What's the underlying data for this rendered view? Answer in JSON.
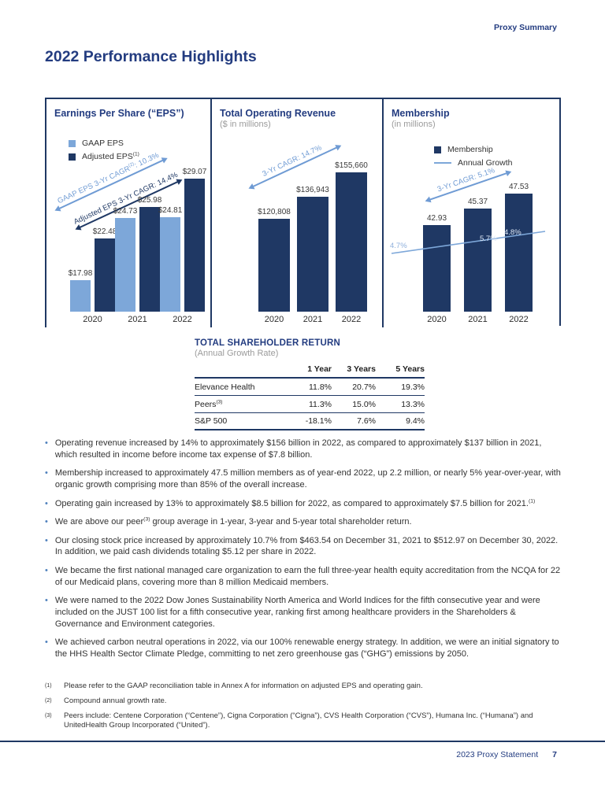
{
  "page": {
    "eyebrow": "Proxy Summary",
    "title": "2022 Performance Highlights",
    "footer": {
      "label": "2023 Proxy Statement",
      "page_number": "7"
    }
  },
  "colors": {
    "navy_text": "#233C80",
    "bar_navy": "#1F3864",
    "bar_light_blue": "#7DA7D9",
    "arrow_light_blue": "#6F9BD4",
    "subtitle_gray": "#9B9B9B",
    "bullet_blue": "#4F81BD"
  },
  "chart_data": [
    {
      "type": "bar",
      "title": "Earnings Per Share (“EPS”)",
      "subtitle": "",
      "categories": [
        "2020",
        "2021",
        "2022"
      ],
      "series": [
        {
          "name": "GAAP EPS",
          "name_sup": "",
          "values": [
            17.98,
            24.73,
            24.81
          ],
          "labels": [
            "$17.98",
            "$24.73",
            "$24.81"
          ],
          "color": "#7DA7D9"
        },
        {
          "name": "Adjusted EPS",
          "name_sup": "(1)",
          "values": [
            22.48,
            25.98,
            29.07
          ],
          "labels": [
            "$22.48",
            "$25.98",
            "$29.07"
          ],
          "color": "#1F3864"
        }
      ],
      "annotations": [
        {
          "pre": "GAAP EPS 3-Yr CAGR",
          "sup": "(2)",
          "post": ": 10.3%"
        },
        {
          "pre": "Adjusted EPS 3-Yr CAGR: 14.4%",
          "sup": "",
          "post": ""
        }
      ],
      "legend_position": "top-left",
      "grid": false
    },
    {
      "type": "bar",
      "title": "Total Operating Revenue",
      "subtitle": "($ in millions)",
      "categories": [
        "2020",
        "2021",
        "2022"
      ],
      "values": [
        120808,
        136943,
        155660
      ],
      "labels": [
        "$120,808",
        "$136,943",
        "$155,660"
      ],
      "annotations": [
        {
          "pre": "3-Yr CAGR: 14.7%",
          "sup": "",
          "post": ""
        }
      ],
      "grid": false
    },
    {
      "type": "bar",
      "title": "Membership",
      "subtitle": "(in millions)",
      "categories": [
        "2020",
        "2021",
        "2022"
      ],
      "series": [
        {
          "name": "Membership",
          "values": [
            42.93,
            45.37,
            47.53
          ],
          "labels": [
            "42.93",
            "45.37",
            "47.53"
          ],
          "color": "#1F3864"
        }
      ],
      "line": {
        "name": "Annual Growth",
        "labels": [
          "4.7%",
          "5.7%",
          "4.8%"
        ],
        "color": "#7DA7D9"
      },
      "annotations": [
        {
          "pre": "3-Yr CAGR: 5.1%",
          "sup": "",
          "post": ""
        }
      ],
      "legend_position": "top",
      "grid": false
    }
  ],
  "tsr_table": {
    "title": "TOTAL SHAREHOLDER RETURN",
    "subtitle": "(Annual Growth Rate)",
    "columns": [
      "1 Year",
      "3 Years",
      "5 Years"
    ],
    "rows": [
      {
        "label": "Elevance Health",
        "sup": "",
        "values": [
          "11.8%",
          "20.7%",
          "19.3%"
        ]
      },
      {
        "label": "Peers",
        "sup": "(3)",
        "values": [
          "11.3%",
          "15.0%",
          "13.3%"
        ]
      },
      {
        "label": "S&P 500",
        "sup": "",
        "values": [
          "-18.1%",
          "7.6%",
          "9.4%"
        ]
      }
    ]
  },
  "bullets": [
    {
      "parts": [
        {
          "t": "Operating revenue increased by 14% to approximately $156 billion in 2022, as compared to approximately $137 billion in 2021, which resulted in income before income tax expense of $7.8 billion."
        }
      ]
    },
    {
      "parts": [
        {
          "t": "Membership increased to approximately 47.5 million members as of year-end 2022, up 2.2 million, or nearly 5% year-over-year, with organic growth comprising more than 85% of the overall increase."
        }
      ]
    },
    {
      "parts": [
        {
          "t": "Operating gain increased by 13% to approximately $8.5 billion for 2022, as compared to approximately $7.5 billion for 2021."
        },
        {
          "sup": "(1)"
        }
      ]
    },
    {
      "parts": [
        {
          "t": "We are above our peer"
        },
        {
          "sup": "(3)"
        },
        {
          "t": " group average in 1-year, 3-year and 5-year total shareholder return."
        }
      ]
    },
    {
      "parts": [
        {
          "t": "Our closing stock price increased by approximately 10.7% from $463.54 on December 31, 2021 to $512.97 on December 30, 2022. In addition, we paid cash dividends totaling $5.12 per share in 2022."
        }
      ]
    },
    {
      "parts": [
        {
          "t": "We became the first national managed care organization to earn the full three-year health equity accreditation from the NCQA for 22 of our Medicaid plans, covering more than 8 million Medicaid members."
        }
      ]
    },
    {
      "parts": [
        {
          "t": "We were named to the 2022 Dow Jones Sustainability North America and World Indices for the fifth consecutive year and were included on the JUST 100 list for a fifth consecutive year, ranking first among healthcare providers in the Shareholders & Governance and Environment categories."
        }
      ]
    },
    {
      "parts": [
        {
          "t": "We achieved carbon neutral operations in 2022, via our 100% renewable energy strategy. In addition, we were an initial signatory to the HHS Health Sector Climate Pledge, committing to net zero greenhouse gas (“GHG”) emissions by 2050."
        }
      ]
    }
  ],
  "footnotes": [
    {
      "marker": "(1)",
      "text": "Please refer to the GAAP reconciliation table in Annex A for information on adjusted EPS and operating gain."
    },
    {
      "marker": "(2)",
      "text": "Compound annual growth rate."
    },
    {
      "marker": "(3)",
      "text": "Peers include: Centene Corporation (“Centene”), Cigna Corporation (“Cigna”), CVS Health Corporation (“CVS”), Humana Inc. (“Humana”) and UnitedHealth Group Incorporated (“United”)."
    }
  ]
}
